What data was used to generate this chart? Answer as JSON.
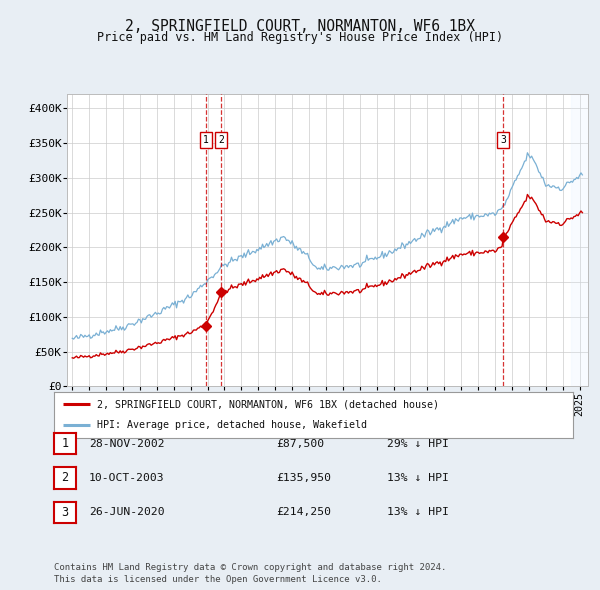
{
  "title": "2, SPRINGFIELD COURT, NORMANTON, WF6 1BX",
  "subtitle": "Price paid vs. HM Land Registry's House Price Index (HPI)",
  "legend_property": "2, SPRINGFIELD COURT, NORMANTON, WF6 1BX (detached house)",
  "legend_hpi": "HPI: Average price, detached house, Wakefield",
  "property_color": "#cc0000",
  "hpi_color": "#7ab0d4",
  "background_color": "#e8eef4",
  "plot_bg_color": "#ffffff",
  "shade_color": "#ddeeff",
  "ylim": [
    0,
    420000
  ],
  "yticks": [
    0,
    50000,
    100000,
    150000,
    200000,
    250000,
    300000,
    350000,
    400000
  ],
  "ytick_labels": [
    "£0",
    "£50K",
    "£100K",
    "£150K",
    "£200K",
    "£250K",
    "£300K",
    "£350K",
    "£400K"
  ],
  "transactions": [
    {
      "num": 1,
      "date": "28-NOV-2002",
      "price": 87500,
      "year_x": 2002.917
    },
    {
      "num": 2,
      "date": "10-OCT-2003",
      "price": 135950,
      "year_x": 2003.792
    },
    {
      "num": 3,
      "date": "26-JUN-2020",
      "price": 214250,
      "year_x": 2020.493
    }
  ],
  "table_rows": [
    {
      "num": 1,
      "date": "28-NOV-2002",
      "price": "£87,500",
      "pct": "29% ↓ HPI"
    },
    {
      "num": 2,
      "date": "10-OCT-2003",
      "price": "£135,950",
      "pct": "13% ↓ HPI"
    },
    {
      "num": 3,
      "date": "26-JUN-2020",
      "price": "£214,250",
      "pct": "13% ↓ HPI"
    }
  ],
  "footer": "Contains HM Land Registry data © Crown copyright and database right 2024.\nThis data is licensed under the Open Government Licence v3.0.",
  "shade_start": 2024.5,
  "xlim": [
    1994.7,
    2025.5
  ],
  "shade_end": 2025.5
}
